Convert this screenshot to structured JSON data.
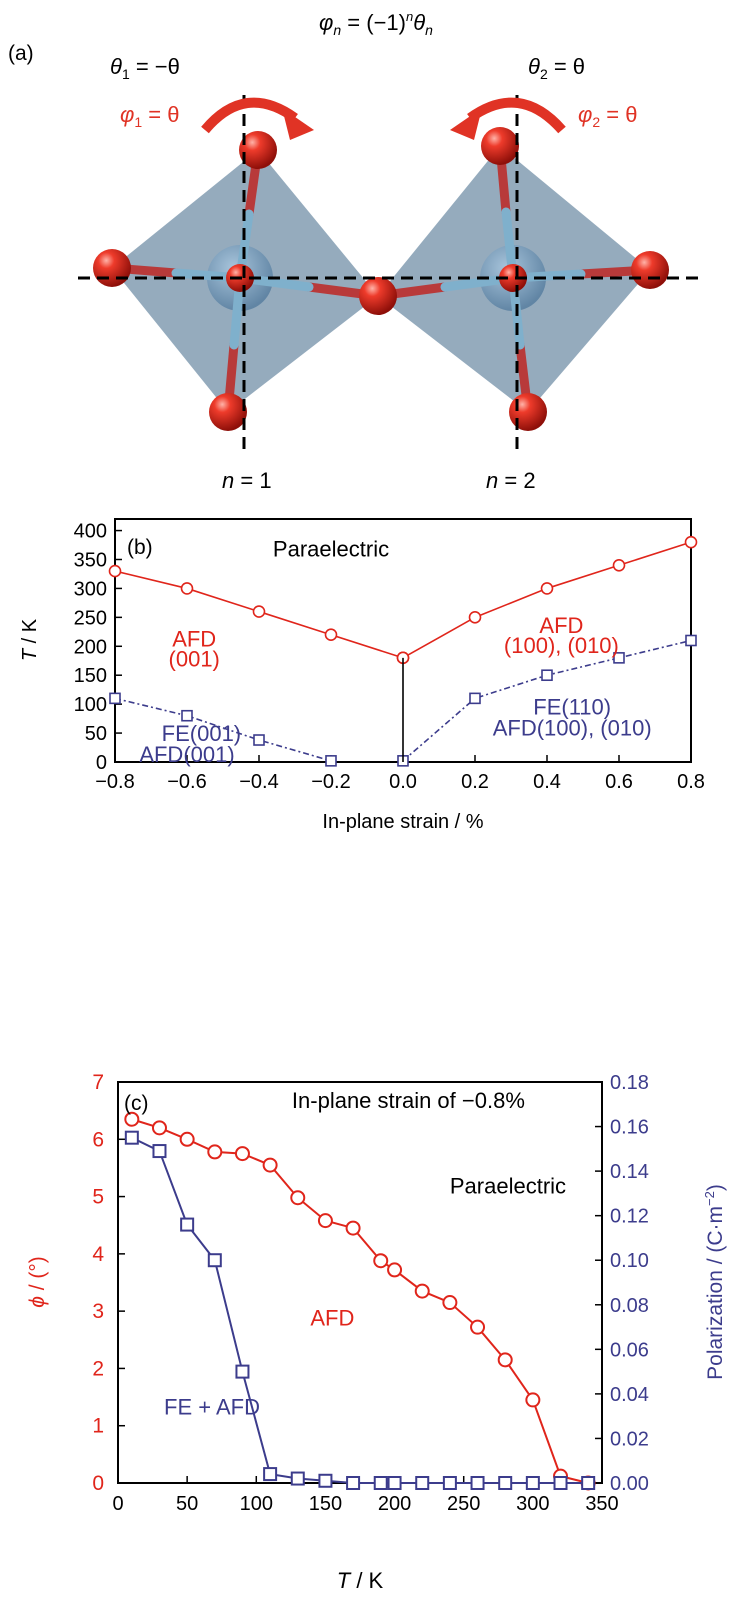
{
  "panel_a": {
    "label": "(a)",
    "formula": {
      "phi": "φ",
      "sub_n": "n",
      "eq": " = (−1)",
      "sup_n": "n",
      "theta": "θ",
      "sub_n2": "n"
    },
    "left_theta": {
      "sym": "θ",
      "sub": "1",
      "rest": " = −θ"
    },
    "left_phi": {
      "sym": "φ",
      "sub": "1",
      "rest": " = θ"
    },
    "right_theta": {
      "sym": "θ",
      "sub": "2",
      "rest": " = θ"
    },
    "right_phi": {
      "sym": "φ",
      "sub": "2",
      "rest": " = θ"
    },
    "n1": {
      "sym": "n",
      "rest": " = 1"
    },
    "n2": {
      "sym": "n",
      "rest": " = 2"
    },
    "colors": {
      "octahedron": "#8aa2b6",
      "oxygen": "#e0251b",
      "bond_red": "#b83a3a",
      "bond_blue": "#7fb0cc",
      "cation": "#6f93b3",
      "arrow": "#e03325"
    }
  },
  "chart_data": [
    {
      "type": "line",
      "panel_label": "(b)",
      "title": "",
      "xlabel": "In-plane strain / %",
      "ylabel": {
        "sym": "T",
        "rest": " / K"
      },
      "xlim": [
        -0.8,
        0.8
      ],
      "ylim": [
        0,
        420
      ],
      "xticks": [
        -0.8,
        -0.6,
        -0.4,
        -0.2,
        0.0,
        0.2,
        0.4,
        0.6,
        0.8
      ],
      "xtick_labels": [
        "−0.8",
        "−0.6",
        "−0.4",
        "−0.2",
        "0.0",
        "0.2",
        "0.4",
        "0.6",
        "0.8"
      ],
      "yticks": [
        0,
        50,
        100,
        150,
        200,
        250,
        300,
        350,
        400
      ],
      "ytick_labels": [
        "0",
        "50",
        "100",
        "150",
        "200",
        "250",
        "300",
        "350",
        "400"
      ],
      "series": [
        {
          "color": "#e0251b",
          "marker": "circle",
          "style": "solid",
          "x": [
            -0.8,
            -0.6,
            -0.4,
            -0.2,
            0.0
          ],
          "y": [
            330,
            300,
            260,
            220,
            180
          ]
        },
        {
          "color": "#e0251b",
          "marker": "circle",
          "style": "solid",
          "x": [
            0.0,
            0.2,
            0.4,
            0.6,
            0.8
          ],
          "y": [
            180,
            250,
            300,
            340,
            380
          ]
        },
        {
          "color": "#3c3c8c",
          "marker": "square",
          "style": "dashdot",
          "x": [
            -0.8,
            -0.6,
            -0.4,
            -0.2
          ],
          "y": [
            110,
            80,
            38,
            2
          ]
        },
        {
          "color": "#3c3c8c",
          "marker": "square",
          "style": "dashdot",
          "x": [
            0.0,
            0.2,
            0.4,
            0.6,
            0.8
          ],
          "y": [
            2,
            110,
            150,
            180,
            210
          ]
        },
        {
          "color": "#000000",
          "marker": "none",
          "style": "solid",
          "x": [
            0.0,
            0.0
          ],
          "y": [
            0,
            180
          ]
        }
      ],
      "annotations": [
        {
          "text": "Paraelectric",
          "color": "#000000",
          "x": -0.2,
          "y": 355
        },
        {
          "text": "AFD",
          "color": "#e0251b",
          "x": -0.58,
          "y": 200
        },
        {
          "text": "(001)",
          "color": "#e0251b",
          "x": -0.58,
          "y": 165
        },
        {
          "text": "AFD",
          "color": "#e0251b",
          "x": 0.44,
          "y": 223
        },
        {
          "text": "(100), (010)",
          "color": "#e0251b",
          "x": 0.44,
          "y": 188
        },
        {
          "text": "FE(110)",
          "color": "#3c3c8c",
          "x": 0.47,
          "y": 82
        },
        {
          "text": "AFD(100), (010)",
          "color": "#3c3c8c",
          "x": 0.47,
          "y": 46
        },
        {
          "text": "FE(001)",
          "color": "#3c3c8c",
          "x": -0.56,
          "y": 36
        },
        {
          "text": "AFD(001)",
          "color": "#3c3c8c",
          "x": -0.6,
          "y": 0
        }
      ]
    },
    {
      "type": "line",
      "panel_label": "(c)",
      "title": "",
      "xlabel": {
        "sym": "T",
        "rest": " / K"
      },
      "ylabel_left": {
        "sym": "ϕ",
        "rest": " / (°)"
      },
      "ylabel_right": "Polarization / (C·m",
      "ylabel_right_sup": "−2",
      "ylabel_right_end": ")",
      "xlim": [
        0,
        350
      ],
      "ylim_left": [
        0,
        7
      ],
      "ylim_right": [
        0,
        0.18
      ],
      "xticks": [
        0,
        50,
        100,
        150,
        200,
        250,
        300,
        350
      ],
      "xtick_labels": [
        "0",
        "50",
        "100",
        "150",
        "200",
        "250",
        "300",
        "350"
      ],
      "yticks_left": [
        0,
        1,
        2,
        3,
        4,
        5,
        6,
        7
      ],
      "ytick_left_labels": [
        "0",
        "1",
        "2",
        "3",
        "4",
        "5",
        "6",
        "7"
      ],
      "yticks_right": [
        0,
        0.02,
        0.04,
        0.06,
        0.08,
        0.1,
        0.12,
        0.14,
        0.16,
        0.18
      ],
      "ytick_right_labels": [
        "0.00",
        "0.02",
        "0.04",
        "0.06",
        "0.08",
        "0.10",
        "0.12",
        "0.14",
        "0.16",
        "0.18"
      ],
      "series": [
        {
          "color": "#e0251b",
          "marker": "circle",
          "axis": "left",
          "x": [
            10,
            30,
            50,
            70,
            90,
            110,
            130,
            150,
            170,
            190,
            200,
            220,
            240,
            260,
            280,
            300,
            320,
            340
          ],
          "y": [
            6.35,
            6.2,
            6.0,
            5.78,
            5.75,
            5.55,
            4.98,
            4.58,
            4.45,
            3.88,
            3.72,
            3.35,
            3.15,
            2.72,
            2.15,
            1.45,
            0.12,
            0.0
          ]
        },
        {
          "color": "#3c3c8c",
          "marker": "square",
          "axis": "right",
          "x": [
            10,
            30,
            50,
            70,
            90,
            110,
            130,
            150,
            170,
            190,
            200,
            220,
            240,
            260,
            280,
            300,
            320,
            340
          ],
          "y": [
            0.155,
            0.149,
            0.116,
            0.1,
            0.05,
            0.004,
            0.002,
            0.001,
            0.0,
            0.0,
            0.0,
            0.0,
            0.0,
            0.0,
            0.0,
            0.0,
            0.0,
            0.0
          ]
        }
      ],
      "annotations": [
        {
          "text": "In-plane strain of −0.8%",
          "color": "#000000",
          "x": 210,
          "y": 6.55
        },
        {
          "text": "Paraelectric",
          "color": "#000000",
          "x": 282,
          "y": 5.05
        },
        {
          "text": "AFD",
          "color": "#e0251b",
          "x": 155,
          "y": 2.75
        },
        {
          "text": "FE + AFD",
          "color": "#3c3c8c",
          "x": 68,
          "y": 1.2
        }
      ]
    }
  ]
}
